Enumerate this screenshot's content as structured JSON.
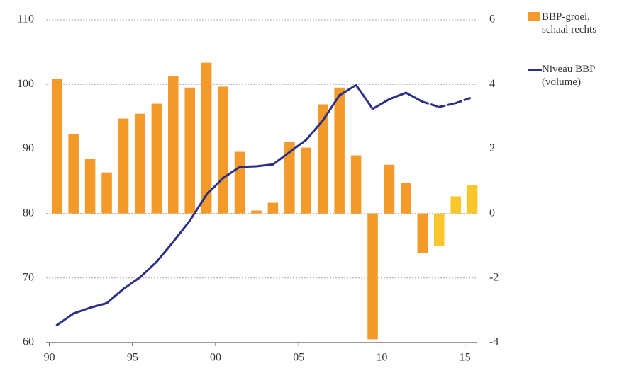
{
  "chart_data": {
    "type": "bar-line",
    "x": [
      1990,
      1991,
      1992,
      1993,
      1994,
      1995,
      1996,
      1997,
      1998,
      1999,
      2000,
      2001,
      2002,
      2003,
      2004,
      2005,
      2006,
      2007,
      2008,
      2009,
      2010,
      2011,
      2012,
      2013,
      2014,
      2015
    ],
    "xlim": [
      1989.8,
      2015.7
    ],
    "xticks": [
      {
        "value": 1990,
        "label": "90"
      },
      {
        "value": 1995,
        "label": "95"
      },
      {
        "value": 2000,
        "label": "00"
      },
      {
        "value": 2005,
        "label": "05"
      },
      {
        "value": 2010,
        "label": "10"
      },
      {
        "value": 2015,
        "label": "15"
      }
    ],
    "ylim": [
      60,
      110
    ],
    "yticks": [
      60,
      70,
      80,
      90,
      100,
      110
    ],
    "y2lim": [
      -4,
      6
    ],
    "y2ticks": [
      -4,
      -2,
      0,
      2,
      4,
      6
    ],
    "grid": true,
    "series": [
      {
        "name": "BBP-groei, schaal rechts",
        "type": "bar",
        "axis": "y2",
        "color": "#f39a2b",
        "values": [
          4.17,
          2.46,
          1.69,
          1.27,
          2.94,
          3.09,
          3.4,
          4.25,
          3.9,
          4.67,
          3.93,
          1.91,
          0.09,
          0.33,
          2.21,
          2.04,
          3.38,
          3.9,
          1.8,
          -3.9,
          1.51,
          0.94,
          -1.23,
          -1.01,
          0.53,
          0.88
        ],
        "colors": [
          "#f39a2b",
          "#f39a2b",
          "#f39a2b",
          "#f39a2b",
          "#f39a2b",
          "#f39a2b",
          "#f39a2b",
          "#f39a2b",
          "#f39a2b",
          "#f39a2b",
          "#f39a2b",
          "#f39a2b",
          "#f39a2b",
          "#f39a2b",
          "#f39a2b",
          "#f39a2b",
          "#f39a2b",
          "#f39a2b",
          "#f39a2b",
          "#f39a2b",
          "#f39a2b",
          "#f39a2b",
          "#f39a2b",
          "#f9c62b",
          "#f9c62b",
          "#f9c62b"
        ]
      },
      {
        "name": "Niveau BBP (volume)",
        "type": "line",
        "color": "#2b2f86",
        "values": [
          62.7,
          64.5,
          65.4,
          66.1,
          68.3,
          70.1,
          72.5,
          75.6,
          78.9,
          82.9,
          85.5,
          87.2,
          87.3,
          87.6,
          89.5,
          91.4,
          94.4,
          98.3,
          99.9,
          96.2,
          97.7,
          98.7,
          97.3,
          96.5,
          97.1,
          98.0
        ],
        "line_styles": [
          "solid",
          "solid",
          "solid",
          "solid",
          "solid",
          "solid",
          "solid",
          "solid",
          "solid",
          "solid",
          "solid",
          "solid",
          "solid",
          "solid",
          "solid",
          "solid",
          "solid",
          "solid",
          "solid",
          "solid",
          "solid",
          "solid",
          "solid",
          "dashed",
          "dashed",
          "dashed"
        ]
      }
    ]
  }
}
